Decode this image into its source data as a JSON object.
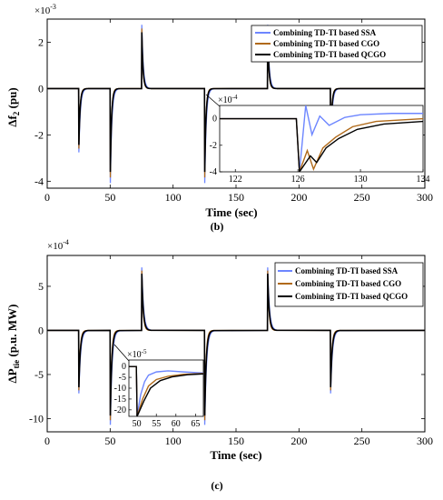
{
  "colors": {
    "ssa": "#6d86ff",
    "cgo": "#b06a1a",
    "qcgo": "#000000"
  },
  "panels": [
    {
      "id": "b",
      "panel_label": "(b)",
      "multiplier": "×10",
      "multiplier_exp": "-3",
      "ylabel_main": "Δf",
      "ylabel_sub": "2",
      "ylabel_unit": " (pu)",
      "xlabel": "Time (sec)",
      "inset": {
        "multiplier": "×10",
        "multiplier_exp": "-4"
      },
      "legend": [
        "Combining TD-TI based SSA",
        "Combining TD-TI based CGO",
        "Combining TD-TI based QCGO"
      ]
    },
    {
      "id": "c",
      "panel_label": "(c)",
      "multiplier": "×10",
      "multiplier_exp": "-4",
      "ylabel_main": "ΔP",
      "ylabel_sub": "tie",
      "ylabel_unit": " (p.u. MW)",
      "xlabel": "Time (sec)",
      "inset": {
        "multiplier": "×10",
        "multiplier_exp": "-5"
      },
      "legend": [
        "Combining TD-TI based SSA",
        "Combining TD-TI based CGO",
        "Combining TD-TI based QCGO"
      ]
    }
  ],
  "chart_data": [
    {
      "type": "line",
      "xlabel": "Time (sec)",
      "ylabel": "Δf2 (pu)",
      "xlim": [
        0,
        300
      ],
      "ylim": [
        -4.3,
        3.0
      ],
      "y_scale": "×10^-3",
      "xticks": [
        0,
        50,
        100,
        150,
        200,
        250,
        300
      ],
      "yticks": [
        -4,
        -2,
        0,
        2
      ],
      "grid": false,
      "legend_position": "top-right",
      "events": [
        {
          "t": 25,
          "peak": -2.7
        },
        {
          "t": 50,
          "peak": -4.0
        },
        {
          "t": 75,
          "peak": 2.7
        },
        {
          "t": 125,
          "peak": -4.0
        },
        {
          "t": 175,
          "peak": 2.7
        },
        {
          "t": 225,
          "peak": -2.7
        }
      ],
      "series": [
        {
          "name": "Combining TD-TI based SSA",
          "color_key": "ssa",
          "peak_scale": 1.02,
          "tau": 1.2
        },
        {
          "name": "Combining TD-TI based CGO",
          "color_key": "cgo",
          "peak_scale": 0.96,
          "tau": 0.9
        },
        {
          "name": "Combining TD-TI based QCGO",
          "color_key": "qcgo",
          "peak_scale": 0.9,
          "tau": 1.0
        }
      ],
      "inset": {
        "xlim": [
          121,
          134
        ],
        "ylim": [
          -4,
          1
        ],
        "y_scale": "×10^-4",
        "xticks": [
          122,
          126,
          130,
          134
        ],
        "yticks": [
          -4,
          -2,
          0
        ],
        "series": [
          {
            "name": "Combining TD-TI based SSA",
            "color_key": "ssa",
            "points": [
              [
                121,
                0
              ],
              [
                125.9,
                0
              ],
              [
                126.1,
                -4
              ],
              [
                126.5,
                1
              ],
              [
                126.9,
                -1.2
              ],
              [
                127.4,
                0.2
              ],
              [
                128,
                -0.5
              ],
              [
                129,
                0.1
              ],
              [
                130,
                0.3
              ],
              [
                132,
                0.4
              ],
              [
                134,
                0.4
              ]
            ]
          },
          {
            "name": "Combining TD-TI based CGO",
            "color_key": "cgo",
            "points": [
              [
                121,
                0
              ],
              [
                125.9,
                0
              ],
              [
                126.1,
                -4
              ],
              [
                126.6,
                -2.4
              ],
              [
                127,
                -3.8
              ],
              [
                127.6,
                -2.2
              ],
              [
                128.4,
                -1.4
              ],
              [
                129.5,
                -0.6
              ],
              [
                131,
                -0.2
              ],
              [
                134,
                0
              ]
            ]
          },
          {
            "name": "Combining TD-TI based QCGO",
            "color_key": "qcgo",
            "points": [
              [
                121,
                0
              ],
              [
                125.9,
                0
              ],
              [
                126.1,
                -4
              ],
              [
                126.8,
                -2.8
              ],
              [
                127.2,
                -3.3
              ],
              [
                127.8,
                -2.2
              ],
              [
                128.6,
                -1.5
              ],
              [
                129.8,
                -0.8
              ],
              [
                131.5,
                -0.4
              ],
              [
                134,
                -0.2
              ]
            ]
          }
        ]
      }
    },
    {
      "type": "line",
      "xlabel": "Time (sec)",
      "ylabel": "ΔPtie (p.u. MW)",
      "xlim": [
        0,
        300
      ],
      "ylim": [
        -11.5,
        8.5
      ],
      "y_scale": "×10^-4",
      "xticks": [
        0,
        50,
        100,
        150,
        200,
        250,
        300
      ],
      "yticks": [
        -10,
        -5,
        0,
        5
      ],
      "grid": false,
      "legend_position": "top-right",
      "events": [
        {
          "t": 25,
          "peak": -7.0
        },
        {
          "t": 50,
          "peak": -10.5
        },
        {
          "t": 75,
          "peak": 7.0
        },
        {
          "t": 125,
          "peak": -10.5
        },
        {
          "t": 175,
          "peak": 7.0
        },
        {
          "t": 225,
          "peak": -7.0
        }
      ],
      "series": [
        {
          "name": "Combining TD-TI based SSA",
          "color_key": "ssa",
          "peak_scale": 1.02,
          "tau": 1.4
        },
        {
          "name": "Combining TD-TI based CGO",
          "color_key": "cgo",
          "peak_scale": 0.97,
          "tau": 1.0
        },
        {
          "name": "Combining TD-TI based QCGO",
          "color_key": "qcgo",
          "peak_scale": 0.92,
          "tau": 1.2
        }
      ],
      "inset": {
        "xlim": [
          48,
          67
        ],
        "ylim": [
          -23,
          3
        ],
        "y_scale": "×10^-5",
        "xticks": [
          50,
          55,
          60,
          65
        ],
        "yticks": [
          -20,
          -15,
          -10,
          -5,
          0
        ],
        "series": [
          {
            "name": "Combining TD-TI based SSA",
            "color_key": "ssa",
            "points": [
              [
                48,
                0
              ],
              [
                49.9,
                0
              ],
              [
                50.1,
                -23
              ],
              [
                51,
                -13
              ],
              [
                52,
                -7
              ],
              [
                53,
                -4
              ],
              [
                55,
                -2.5
              ],
              [
                58,
                -2
              ],
              [
                62,
                -2.5
              ],
              [
                67,
                -3
              ]
            ]
          },
          {
            "name": "Combining TD-TI based CGO",
            "color_key": "cgo",
            "points": [
              [
                48,
                0
              ],
              [
                49.9,
                0
              ],
              [
                50.1,
                -23
              ],
              [
                51.5,
                -15
              ],
              [
                53,
                -9
              ],
              [
                55,
                -6
              ],
              [
                58,
                -4.5
              ],
              [
                62,
                -3.6
              ],
              [
                67,
                -3.2
              ]
            ]
          },
          {
            "name": "Combining TD-TI based QCGO",
            "color_key": "qcgo",
            "points": [
              [
                48,
                0
              ],
              [
                49.9,
                0
              ],
              [
                50.1,
                -23
              ],
              [
                51.8,
                -16
              ],
              [
                53.5,
                -10
              ],
              [
                56,
                -6.5
              ],
              [
                59,
                -4.8
              ],
              [
                63,
                -3.8
              ],
              [
                67,
                -3.4
              ]
            ]
          }
        ]
      }
    }
  ]
}
